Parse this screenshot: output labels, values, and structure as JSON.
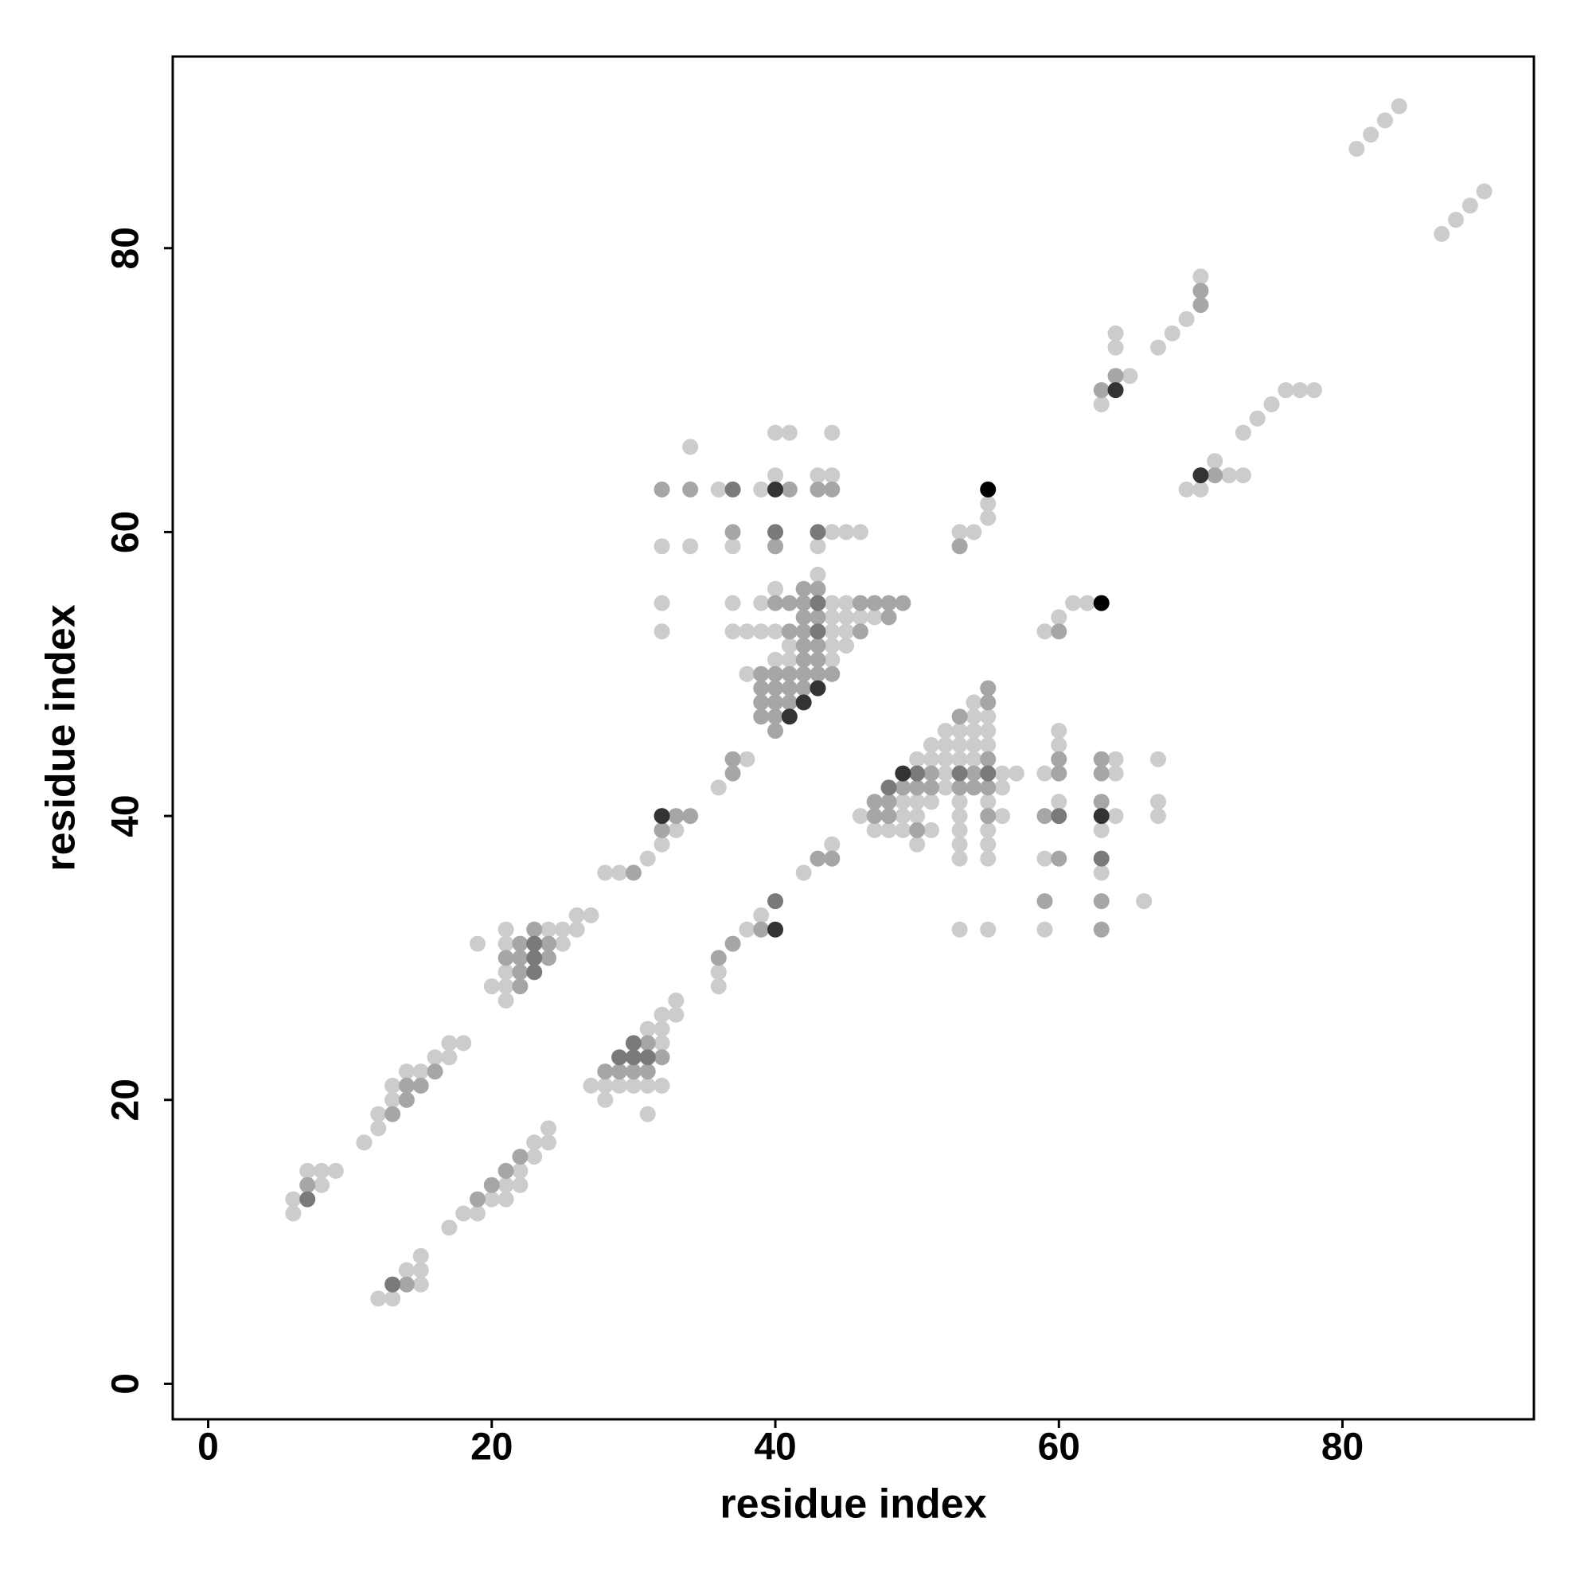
{
  "chart_data": {
    "type": "scatter",
    "xlabel": "residue index",
    "ylabel": "residue index",
    "xlim": [
      -2.5,
      93.5
    ],
    "ylim": [
      -2.5,
      93.5
    ],
    "xticks": [
      0,
      20,
      40,
      60,
      80
    ],
    "yticks": [
      0,
      20,
      40,
      60,
      80
    ],
    "grid": false,
    "series": [
      {
        "color": "#cccccc",
        "x": [
          81,
          82,
          83,
          84,
          87,
          88,
          89,
          90,
          70,
          69,
          68,
          67,
          64,
          64,
          63,
          65,
          70,
          69,
          71,
          72,
          73,
          73,
          74,
          75,
          76,
          77,
          78,
          55,
          55,
          54,
          53,
          62,
          61,
          60,
          59,
          34,
          40,
          41,
          44,
          40,
          43,
          44,
          36,
          39,
          32,
          34,
          37,
          43,
          44,
          45,
          46,
          32,
          32,
          43,
          40,
          37,
          39,
          44,
          45,
          44,
          45,
          46,
          47,
          37,
          38,
          39,
          40,
          44,
          45,
          41,
          44,
          45,
          40,
          41,
          44,
          38,
          60,
          60,
          59,
          60,
          59,
          59,
          64,
          64,
          64,
          63,
          63,
          66,
          67,
          67,
          67,
          54,
          54,
          55,
          52,
          53,
          54,
          55,
          51,
          52,
          53,
          54,
          55,
          50,
          51,
          52,
          53,
          54,
          52,
          56,
          57,
          52,
          56,
          49,
          50,
          51,
          53,
          55,
          46,
          49,
          50,
          53,
          56,
          47,
          48,
          49,
          51,
          53,
          55,
          50,
          53,
          55,
          53,
          55,
          53,
          55,
          36,
          38,
          33,
          32,
          31,
          28,
          29,
          39,
          38,
          36,
          36,
          42,
          44,
          19,
          20,
          21,
          21,
          21,
          21,
          21,
          24,
          25,
          25,
          26,
          26,
          27,
          27,
          28,
          28,
          29,
          30,
          31,
          31,
          31,
          32,
          32,
          32,
          32,
          33,
          33,
          6,
          6,
          7,
          8,
          8,
          9,
          11,
          12,
          12,
          13,
          13,
          14,
          15,
          16,
          17,
          17,
          18,
          12,
          13,
          14,
          15,
          15,
          15,
          17,
          18,
          19,
          20,
          21,
          21,
          22,
          22,
          23,
          23,
          24,
          24
        ],
        "y": [
          87,
          88,
          89,
          90,
          81,
          82,
          83,
          84,
          78,
          75,
          74,
          73,
          74,
          73,
          69,
          71,
          63,
          63,
          65,
          64,
          64,
          67,
          68,
          69,
          70,
          70,
          70,
          62,
          61,
          60,
          60,
          55,
          55,
          54,
          53,
          66,
          67,
          67,
          67,
          64,
          64,
          64,
          63,
          63,
          59,
          59,
          59,
          59,
          60,
          60,
          60,
          55,
          53,
          57,
          56,
          55,
          55,
          55,
          55,
          54,
          54,
          54,
          54,
          53,
          53,
          53,
          53,
          53,
          53,
          52,
          52,
          52,
          51,
          51,
          51,
          50,
          46,
          45,
          43,
          41,
          37,
          32,
          44,
          43,
          40,
          39,
          36,
          34,
          44,
          41,
          40,
          48,
          47,
          47,
          46,
          46,
          46,
          46,
          45,
          45,
          45,
          45,
          45,
          44,
          44,
          44,
          44,
          44,
          43,
          43,
          43,
          42,
          42,
          41,
          41,
          41,
          41,
          41,
          40,
          40,
          40,
          40,
          40,
          39,
          39,
          39,
          39,
          39,
          39,
          38,
          38,
          38,
          37,
          37,
          32,
          32,
          42,
          44,
          39,
          38,
          37,
          36,
          36,
          33,
          32,
          29,
          28,
          36,
          38,
          31,
          28,
          32,
          31,
          29,
          28,
          27,
          32,
          32,
          31,
          33,
          32,
          33,
          21,
          21,
          20,
          21,
          21,
          25,
          21,
          19,
          26,
          25,
          24,
          21,
          27,
          26,
          13,
          12,
          15,
          15,
          14,
          15,
          17,
          19,
          18,
          21,
          20,
          22,
          22,
          23,
          24,
          23,
          24,
          6,
          6,
          8,
          9,
          8,
          7,
          11,
          12,
          12,
          13,
          14,
          13,
          15,
          14,
          17,
          16,
          18,
          17
        ]
      },
      {
        "color": "#a6a6a6",
        "x": [
          64,
          63,
          71,
          70,
          70,
          53,
          32,
          34,
          41,
          43,
          44,
          37,
          40,
          60,
          60,
          59,
          60,
          59,
          63,
          63,
          63,
          63,
          63,
          60,
          42,
          43,
          40,
          41,
          42,
          46,
          47,
          48,
          49,
          42,
          43,
          48,
          41,
          42,
          46,
          42,
          43,
          42,
          43,
          39,
          40,
          41,
          42,
          43,
          44,
          39,
          40,
          41,
          42,
          39,
          40,
          41,
          39,
          40,
          40,
          55,
          55,
          53,
          55,
          51,
          54,
          49,
          50,
          51,
          53,
          54,
          55,
          47,
          48,
          47,
          48,
          55,
          50,
          37,
          37,
          33,
          34,
          32,
          30,
          39,
          37,
          36,
          43,
          44,
          21,
          22,
          22,
          22,
          22,
          23,
          24,
          24,
          28,
          29,
          30,
          31,
          31,
          32,
          7,
          13,
          14,
          14,
          15,
          16,
          14,
          19,
          20,
          21,
          22
        ],
        "y": [
          71,
          70,
          64,
          76,
          77,
          59,
          63,
          63,
          63,
          63,
          63,
          60,
          59,
          43,
          44,
          40,
          37,
          34,
          44,
          43,
          41,
          34,
          32,
          53,
          56,
          56,
          55,
          55,
          55,
          55,
          55,
          55,
          55,
          54,
          54,
          54,
          53,
          53,
          53,
          52,
          52,
          51,
          51,
          50,
          50,
          50,
          50,
          50,
          50,
          49,
          49,
          49,
          49,
          48,
          48,
          48,
          47,
          47,
          46,
          49,
          48,
          47,
          44,
          43,
          43,
          42,
          42,
          42,
          42,
          42,
          42,
          41,
          41,
          40,
          40,
          40,
          39,
          43,
          44,
          40,
          40,
          39,
          36,
          32,
          31,
          30,
          37,
          37,
          30,
          31,
          30,
          29,
          28,
          32,
          31,
          30,
          22,
          22,
          22,
          24,
          22,
          23,
          14,
          19,
          21,
          20,
          21,
          22,
          7,
          13,
          14,
          15,
          16
        ]
      },
      {
        "color": "#7a7a7a",
        "x": [
          37,
          40,
          43,
          43,
          43,
          7,
          13,
          23,
          23,
          23,
          29,
          30,
          30,
          31,
          40,
          63,
          60,
          50,
          53,
          55,
          48
        ],
        "y": [
          63,
          60,
          60,
          55,
          53,
          13,
          7,
          31,
          30,
          29,
          23,
          24,
          23,
          23,
          34,
          37,
          40,
          43,
          43,
          43,
          42
        ]
      },
      {
        "color": "#333333",
        "x": [
          64,
          70,
          40,
          43,
          42,
          41,
          32,
          40,
          63,
          49
        ],
        "y": [
          70,
          64,
          63,
          49,
          48,
          47,
          40,
          32,
          40,
          43
        ]
      },
      {
        "color": "#000000",
        "x": [
          55,
          63
        ],
        "y": [
          63,
          55
        ]
      }
    ]
  }
}
